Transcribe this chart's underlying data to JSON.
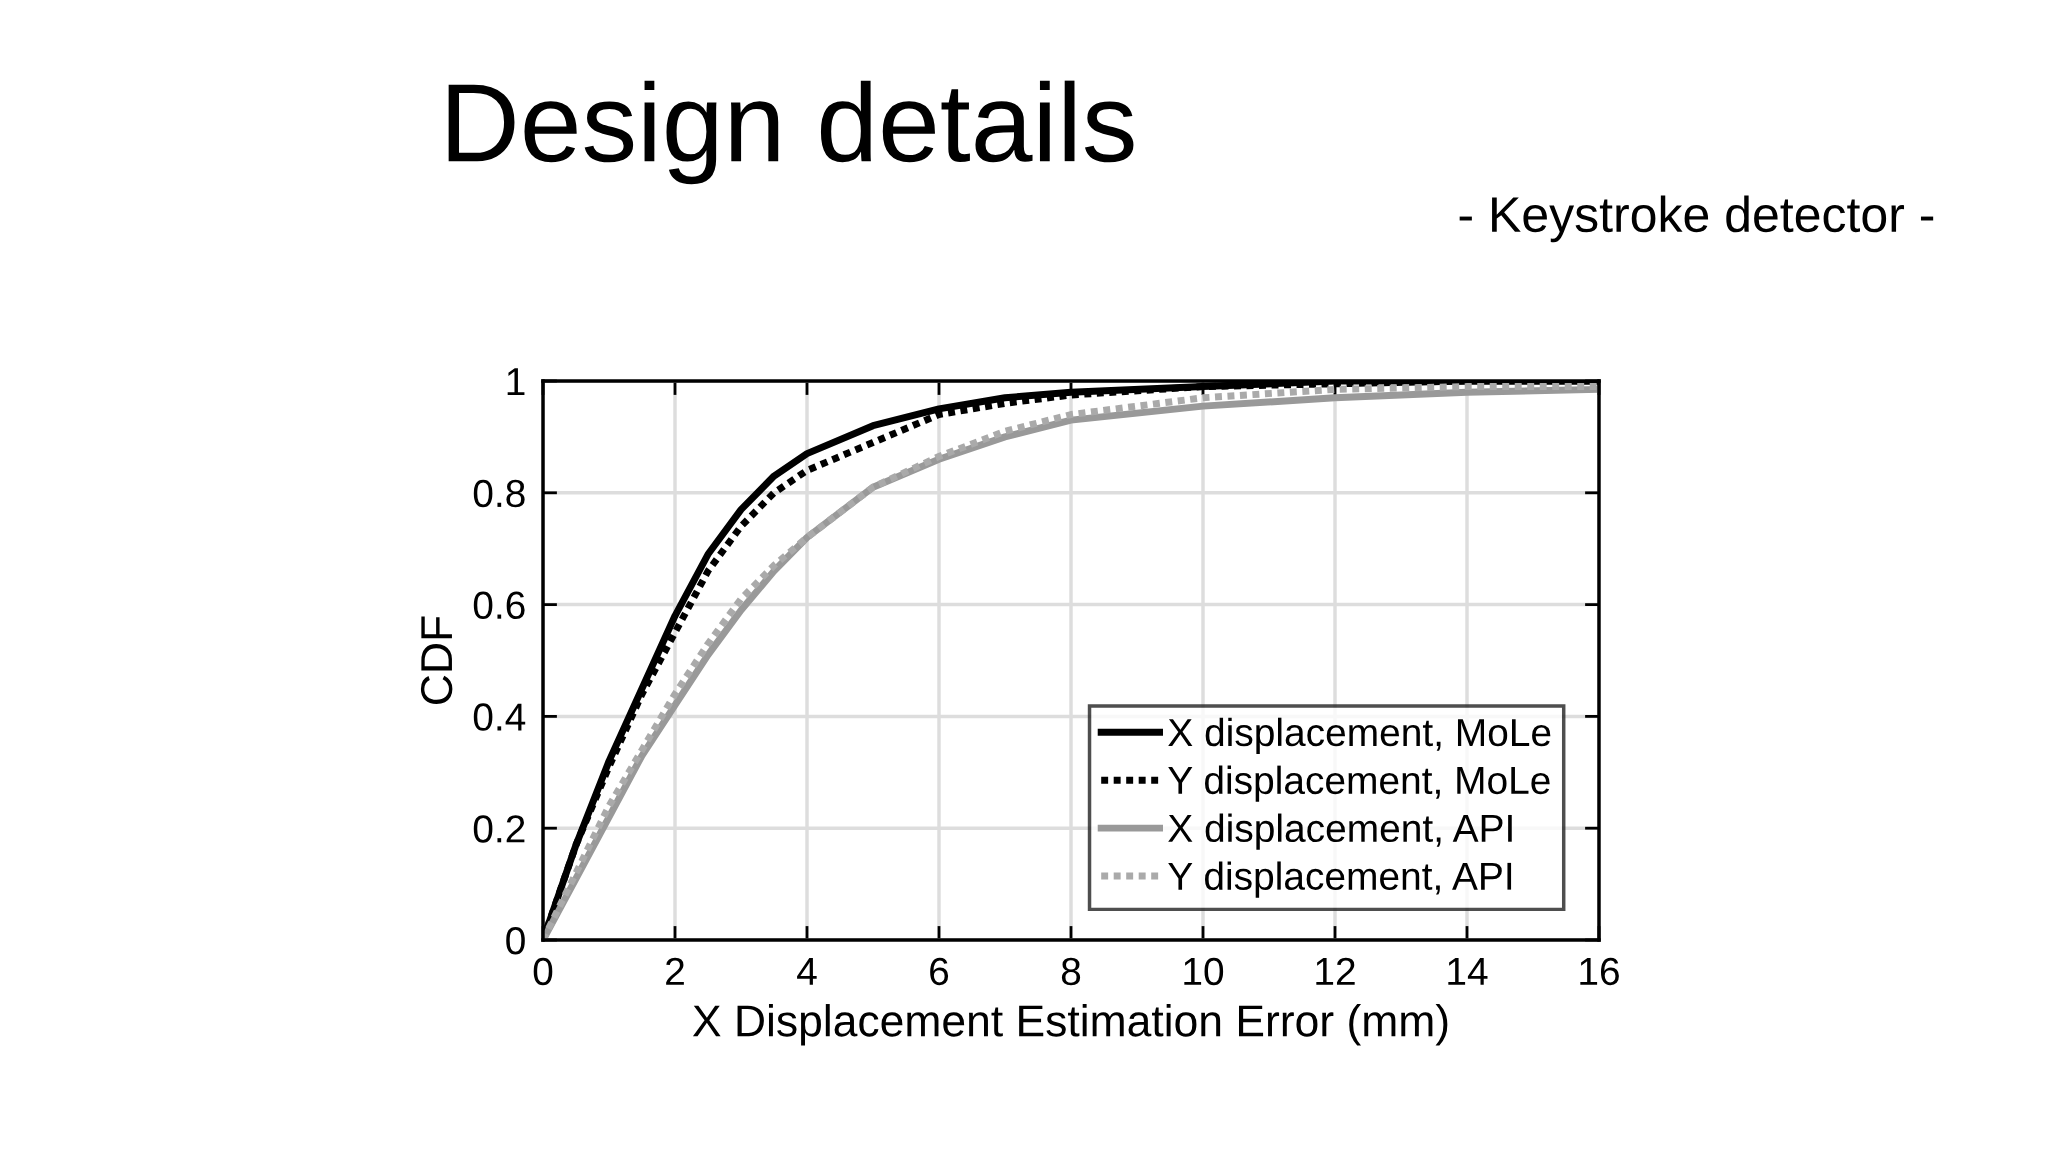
{
  "chart_data": {
    "type": "line",
    "title": "Design details",
    "subtitle": "- Keystroke detector -",
    "xlabel": "X Displacement Estimation Error (mm)",
    "ylabel": "CDF",
    "x": [
      0,
      0.5,
      1,
      1.5,
      2,
      2.5,
      3,
      3.5,
      4,
      5,
      6,
      7,
      8,
      10,
      12,
      14,
      16
    ],
    "series": [
      {
        "name": "X displacement, MoLe",
        "color": "#000000",
        "line_style": "solid",
        "values": [
          0,
          0.17,
          0.32,
          0.45,
          0.58,
          0.69,
          0.77,
          0.83,
          0.87,
          0.92,
          0.95,
          0.97,
          0.98,
          0.99,
          1,
          1,
          1
        ]
      },
      {
        "name": "Y displacement, MoLe",
        "color": "#000000",
        "line_style": "dotted",
        "values": [
          0,
          0.17,
          0.31,
          0.44,
          0.55,
          0.66,
          0.74,
          0.8,
          0.84,
          0.89,
          0.94,
          0.96,
          0.975,
          0.99,
          0.995,
          1,
          1
        ]
      },
      {
        "name": "X displacement, API",
        "color": "#999999",
        "line_style": "solid",
        "values": [
          0,
          0.11,
          0.22,
          0.33,
          0.42,
          0.51,
          0.59,
          0.66,
          0.72,
          0.81,
          0.86,
          0.9,
          0.93,
          0.955,
          0.97,
          0.98,
          0.985
        ]
      },
      {
        "name": "Y displacement, API",
        "color": "#aaaaaa",
        "line_style": "dotted",
        "values": [
          0,
          0.12,
          0.24,
          0.34,
          0.44,
          0.53,
          0.61,
          0.67,
          0.72,
          0.81,
          0.865,
          0.91,
          0.94,
          0.97,
          0.985,
          0.99,
          0.99
        ]
      }
    ],
    "xlim": [
      0,
      16
    ],
    "xticks": [
      0,
      2,
      4,
      6,
      8,
      10,
      12,
      14,
      16
    ],
    "ylim": [
      0,
      1
    ],
    "yticks": [
      0,
      0.2,
      0.4,
      0.6,
      0.8,
      1
    ],
    "grid": true,
    "legend": "bottom right"
  }
}
